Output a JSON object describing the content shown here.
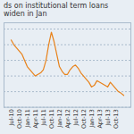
{
  "chart_data": {
    "type": "line",
    "title": "ds on institutional term loans widen in Jan",
    "categories": [
      "Jul-10",
      null,
      null,
      "Oct-10",
      null,
      null,
      "Jan-11",
      null,
      null,
      "Apr-11",
      null,
      null,
      "Jul-11",
      null,
      null,
      "Oct-11",
      null,
      null,
      "Jan-12",
      null,
      null,
      "Apr-12",
      null,
      null,
      "Jul-12",
      null,
      null,
      "Oct-12",
      null,
      null,
      "Jan-13",
      null,
      null,
      "Apr-13",
      null,
      null,
      "Jul-13",
      null,
      null,
      "Oct-13",
      null,
      null,
      null
    ],
    "values": [
      4.65,
      4.5,
      4.4,
      4.3,
      4.2,
      4.0,
      3.8,
      3.7,
      3.6,
      3.5,
      3.55,
      3.6,
      3.7,
      4.0,
      4.5,
      4.9,
      4.6,
      4.2,
      3.8,
      3.65,
      3.55,
      3.55,
      3.7,
      3.8,
      3.85,
      3.75,
      3.6,
      3.5,
      3.4,
      3.3,
      3.15,
      3.2,
      3.35,
      3.3,
      3.25,
      3.2,
      3.15,
      3.3,
      3.2,
      3.1,
      3.0,
      2.95,
      2.88
    ],
    "color": "#E8821A",
    "ylim": [
      2.5,
      5.2
    ],
    "yticks": [
      2.5,
      3.0,
      3.5,
      4.0,
      4.5,
      5.0
    ],
    "grid": true,
    "tick_labels": "x"
  }
}
